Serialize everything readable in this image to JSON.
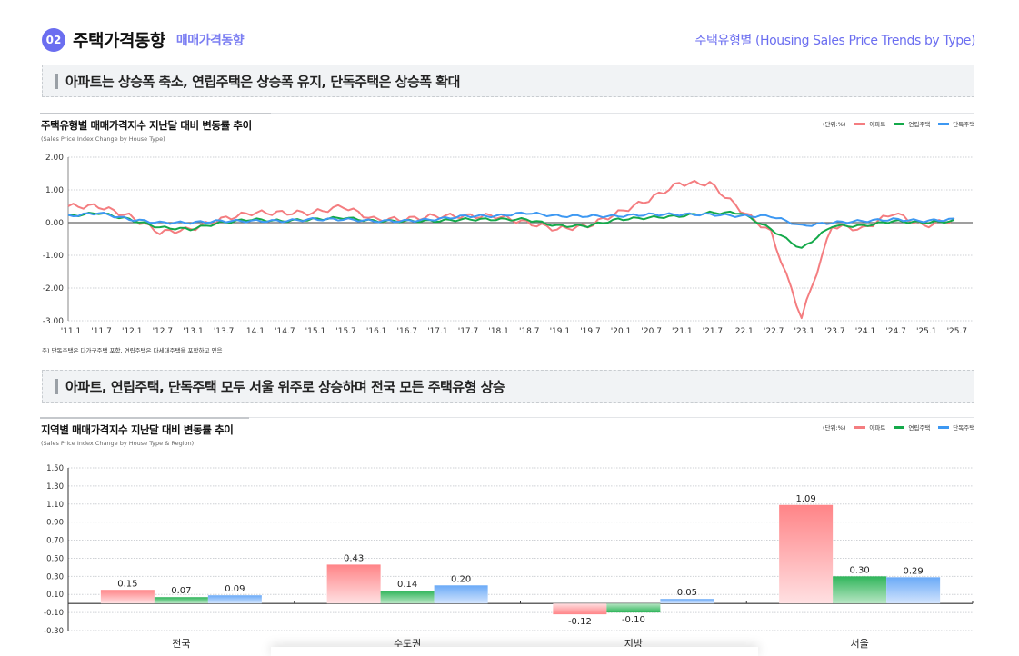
{
  "header": {
    "section_number": "02",
    "title": "주택가격동향",
    "subtitle": "매매가격동향",
    "right_title": "주택유형별 (Housing Sales Price Trends by Type)"
  },
  "banners": [
    {
      "text": "아파트는 상승폭 축소, 연립주택은 상승폭 유지, 단독주택은 상승폭 확대"
    },
    {
      "text": "아파트, 연립주택, 단독주택 모두 서울 위주로 상승하며 전국 모든 주택유형 상승"
    }
  ],
  "colors": {
    "apartment": "#f47d80",
    "row_house": "#14a94a",
    "detached": "#3d98f2",
    "accent": "#6b6ef0"
  },
  "line_chart": {
    "title": "주택유형별 매매가격지수 지난달 대비 변동률 추이",
    "subtitle": "(Sales Price Index Change by House Type)",
    "legend": {
      "unit": "(단위:%)",
      "items": [
        "아파트",
        "연립주택",
        "단독주택"
      ]
    },
    "note": "주) 단독주택은 다가구주택 포함, 연립주택은 다세대주택을 포함하고 있음"
  },
  "bar_chart": {
    "title": "지역별 매매가격지수 지난달 대비 변동률 추이",
    "subtitle": "(Sales Price Index Change by House Type & Region)",
    "legend": {
      "unit": "(단위:%)",
      "items": [
        "아파트",
        "연립주택",
        "단독주택"
      ]
    }
  },
  "chart_data": [
    {
      "type": "line",
      "title": "주택유형별 매매가격지수 지난달 대비 변동률 추이",
      "subtitle": "(Sales Price Index Change by House Type)",
      "xlabel": "",
      "ylabel": "",
      "ylim": [
        -3.0,
        2.0
      ],
      "yticks": [
        "2.00",
        "1.00",
        "0.00",
        "-1.00",
        "-2.00",
        "-3.00"
      ],
      "grid": true,
      "legend_position": "top-right",
      "x": [
        "'11.1",
        "'11.7",
        "'12.1",
        "'12.7",
        "'13.1",
        "'13.7",
        "'14.1",
        "'14.7",
        "'15.1",
        "'15.7",
        "'16.1",
        "'16.7",
        "'17.1",
        "'17.7",
        "'18.1",
        "'18.7",
        "'19.1",
        "'19.7",
        "'20.1",
        "'20.7",
        "'21.1",
        "'21.7",
        "'22.1",
        "'22.7",
        "'23.1",
        "'23.7",
        "'24.1",
        "'24.7",
        "'25.1",
        "'25.7"
      ],
      "series": [
        {
          "name": "아파트",
          "values": [
            0.5,
            0.5,
            0.2,
            -0.3,
            -0.2,
            0.1,
            0.3,
            0.3,
            0.3,
            0.5,
            0.1,
            0.1,
            0.2,
            0.2,
            0.2,
            0.0,
            -0.2,
            -0.1,
            0.3,
            0.7,
            1.2,
            1.2,
            0.4,
            -0.3,
            -2.9,
            -0.1,
            -0.2,
            0.3,
            -0.1,
            0.1
          ]
        },
        {
          "name": "연립주택",
          "values": [
            0.2,
            0.3,
            0.1,
            -0.15,
            -0.2,
            0.0,
            0.1,
            0.05,
            0.1,
            0.15,
            0.05,
            0.05,
            0.05,
            0.1,
            0.1,
            0.1,
            -0.1,
            -0.1,
            0.1,
            0.15,
            0.2,
            0.3,
            0.3,
            -0.2,
            -0.8,
            -0.1,
            -0.1,
            0.05,
            0.0,
            0.05
          ]
        },
        {
          "name": "단독주택",
          "values": [
            0.2,
            0.3,
            0.1,
            0.0,
            0.0,
            0.05,
            0.05,
            0.05,
            0.1,
            0.1,
            0.05,
            0.05,
            0.1,
            0.2,
            0.2,
            0.3,
            0.2,
            0.2,
            0.2,
            0.25,
            0.25,
            0.25,
            0.2,
            0.2,
            -0.1,
            0.0,
            0.05,
            0.1,
            0.05,
            0.1
          ]
        }
      ]
    },
    {
      "type": "bar",
      "title": "지역별 매매가격지수 지난달 대비 변동률 추이",
      "subtitle": "(Sales Price Index Change by House Type & Region)",
      "xlabel": "",
      "ylabel": "",
      "ylim": [
        -0.3,
        1.5
      ],
      "yticks": [
        "1.50",
        "1.30",
        "1.10",
        "0.90",
        "0.70",
        "0.50",
        "0.30",
        "0.10",
        "-0.10",
        "-0.30"
      ],
      "grid": true,
      "legend_position": "top-right",
      "categories": [
        "전국",
        "수도권",
        "지방",
        "서울"
      ],
      "series": [
        {
          "name": "아파트",
          "values": [
            0.15,
            0.43,
            -0.12,
            1.09
          ],
          "labels": [
            "0.15",
            "0.43",
            "-0.12",
            "1.09"
          ]
        },
        {
          "name": "연립주택",
          "values": [
            0.07,
            0.14,
            -0.1,
            0.3
          ],
          "labels": [
            "0.07",
            "0.14",
            "-0.10",
            "0.30"
          ]
        },
        {
          "name": "단독주택",
          "values": [
            0.09,
            0.2,
            0.05,
            0.29
          ],
          "labels": [
            "0.09",
            "0.20",
            "0.05",
            "0.29"
          ]
        }
      ]
    }
  ]
}
